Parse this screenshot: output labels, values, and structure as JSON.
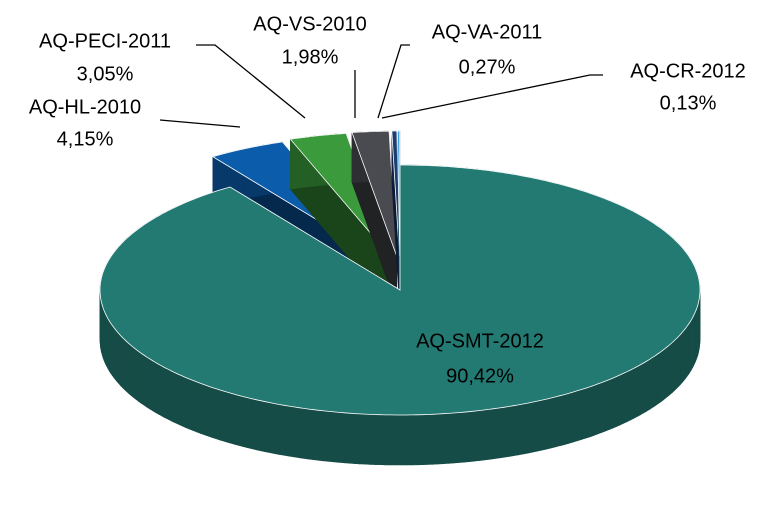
{
  "chart_data": {
    "type": "pie",
    "categories": [
      "AQ-SMT-2012",
      "AQ-HL-2010",
      "AQ-PECI-2011",
      "AQ-VS-2010",
      "AQ-VA-2011",
      "AQ-CR-2012"
    ],
    "values": [
      90.42,
      4.15,
      3.05,
      1.98,
      0.27,
      0.13
    ],
    "value_labels": [
      "90,42%",
      "4,15%",
      "3,05%",
      "1,98%",
      "0,27%",
      "0,13%"
    ],
    "colors": [
      "#237a73",
      "#0b5cab",
      "#3a9a3c",
      "#4a4b50",
      "#1f3c70",
      "#3aa3dc"
    ]
  }
}
